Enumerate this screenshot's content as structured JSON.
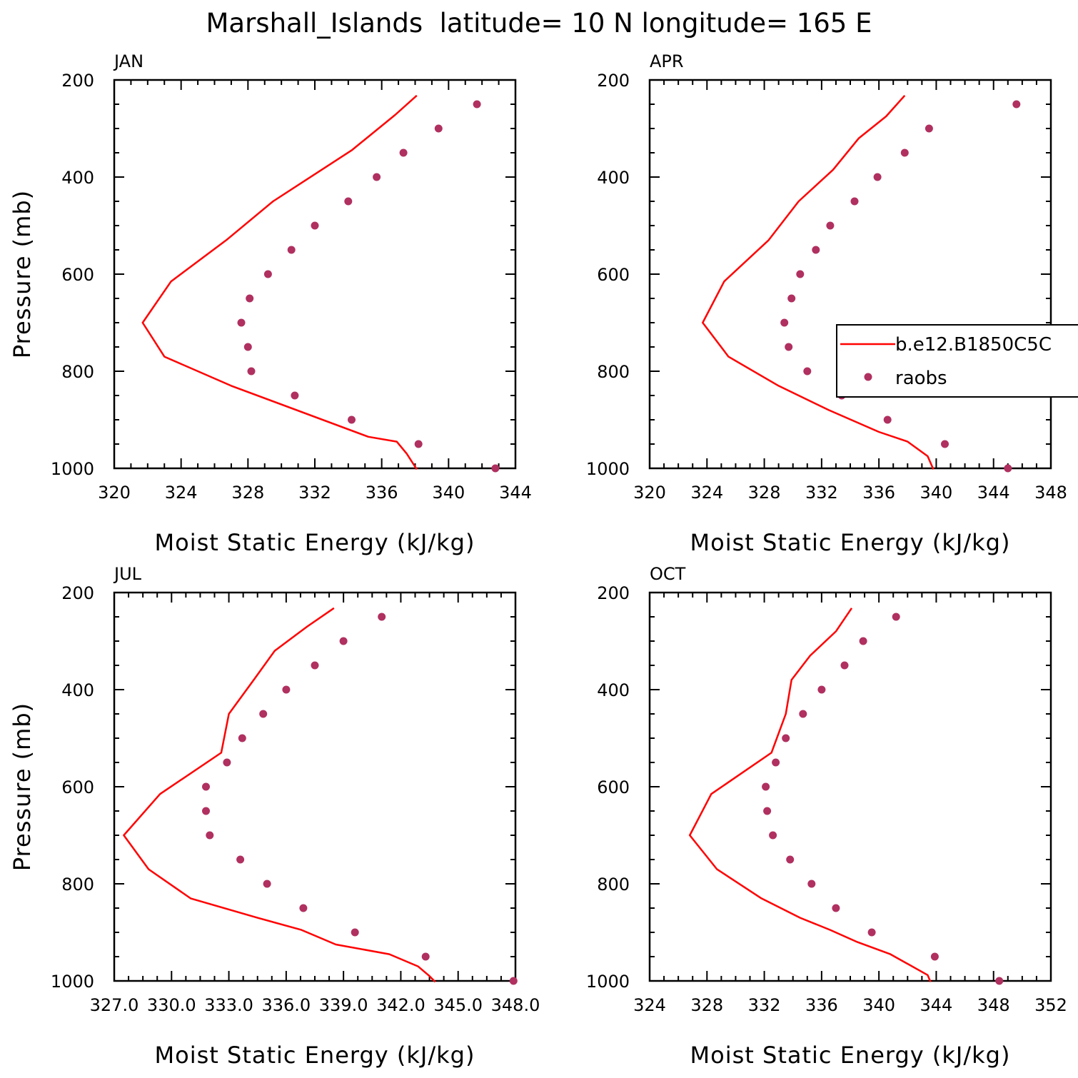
{
  "figure": {
    "title": "Marshall_Islands  latitude= 10 N longitude= 165 E"
  },
  "legend": {
    "model_label": "b.e12.B1850C5C",
    "obs_label": "raobs"
  },
  "colors": {
    "model": "#ff0000",
    "obs": "#b03060",
    "axis": "#000000"
  },
  "chart_data": [
    {
      "type": "line",
      "panel": "JAN",
      "xlabel": "Moist Static Energy (kJ/kg)",
      "ylabel": "Pressure (mb)",
      "xlim": [
        320,
        344
      ],
      "ylim": [
        1000,
        200
      ],
      "xticks": [
        320,
        324,
        328,
        332,
        336,
        340,
        344
      ],
      "xtick_labels": [
        "320",
        "324",
        "328",
        "332",
        "336",
        "340",
        "344"
      ],
      "yticks": [
        200,
        400,
        600,
        800,
        1000
      ],
      "series": [
        {
          "name": "b.e12.B1850C5C",
          "kind": "line",
          "x": [
            338.1,
            336.8,
            334.2,
            329.5,
            326.7,
            323.4,
            321.7,
            323.0,
            327.0,
            335.2,
            336.9,
            337.5,
            338.1
          ],
          "y": [
            232,
            272,
            345,
            450,
            530,
            615,
            700,
            770,
            830,
            935,
            945,
            970,
            1002
          ]
        },
        {
          "name": "raobs",
          "kind": "scatter",
          "x": [
            341.7,
            339.4,
            337.3,
            335.7,
            334.0,
            332.0,
            330.6,
            329.2,
            328.1,
            327.6,
            328.0,
            328.2,
            330.8,
            334.2,
            338.2,
            342.8
          ],
          "y": [
            250,
            300,
            350,
            400,
            450,
            500,
            550,
            600,
            650,
            700,
            750,
            800,
            850,
            900,
            950,
            1000
          ]
        }
      ]
    },
    {
      "type": "line",
      "panel": "APR",
      "xlabel": "Moist Static Energy (kJ/kg)",
      "ylabel": "",
      "xlim": [
        320,
        348
      ],
      "ylim": [
        1000,
        200
      ],
      "xticks": [
        320,
        324,
        328,
        332,
        336,
        340,
        344,
        348
      ],
      "xtick_labels": [
        "320",
        "324",
        "328",
        "332",
        "336",
        "340",
        "344",
        "348"
      ],
      "yticks": [
        200,
        400,
        600,
        800,
        1000
      ],
      "series": [
        {
          "name": "b.e12.B1850C5C",
          "kind": "line",
          "x": [
            337.8,
            336.5,
            334.6,
            332.8,
            330.4,
            328.3,
            325.2,
            323.7,
            325.5,
            329.0,
            332.5,
            336.0,
            338.0,
            339.4,
            339.8
          ],
          "y": [
            232,
            275,
            320,
            385,
            450,
            530,
            615,
            700,
            770,
            830,
            880,
            925,
            945,
            975,
            1002
          ]
        },
        {
          "name": "raobs",
          "kind": "scatter",
          "x": [
            345.6,
            339.5,
            337.8,
            335.9,
            334.3,
            332.6,
            331.6,
            330.5,
            329.9,
            329.4,
            329.7,
            331.0,
            333.4,
            336.6,
            340.6,
            345.0
          ],
          "y": [
            250,
            300,
            350,
            400,
            450,
            500,
            550,
            600,
            650,
            700,
            750,
            800,
            850,
            900,
            950,
            1000
          ]
        }
      ]
    },
    {
      "type": "line",
      "panel": "JUL",
      "xlabel": "Moist Static Energy (kJ/kg)",
      "ylabel": "Pressure (mb)",
      "xlim": [
        327.0,
        348.0
      ],
      "ylim": [
        1000,
        200
      ],
      "xticks": [
        327.0,
        330.0,
        333.0,
        336.0,
        339.0,
        342.0,
        345.0,
        348.0
      ],
      "xtick_labels": [
        "327.0",
        "330.0",
        "333.0",
        "336.0",
        "339.0",
        "342.0",
        "345.0",
        "348.0"
      ],
      "yticks": [
        200,
        400,
        600,
        800,
        1000
      ],
      "series": [
        {
          "name": "b.e12.B1850C5C",
          "kind": "line",
          "x": [
            338.5,
            337.1,
            335.4,
            334.3,
            333.0,
            332.6,
            329.4,
            327.5,
            328.8,
            331.0,
            334.5,
            336.8,
            338.6,
            341.4,
            342.9,
            343.5,
            343.8
          ],
          "y": [
            232,
            270,
            320,
            380,
            450,
            530,
            615,
            700,
            770,
            830,
            870,
            895,
            925,
            945,
            970,
            990,
            1002
          ]
        },
        {
          "name": "raobs",
          "kind": "scatter",
          "x": [
            341.0,
            339.0,
            337.5,
            336.0,
            334.8,
            333.7,
            332.9,
            331.8,
            331.8,
            332.0,
            333.6,
            335.0,
            336.9,
            339.6,
            343.3,
            347.9
          ],
          "y": [
            250,
            300,
            350,
            400,
            450,
            500,
            550,
            600,
            650,
            700,
            750,
            800,
            850,
            900,
            950,
            1000
          ]
        }
      ]
    },
    {
      "type": "line",
      "panel": "OCT",
      "xlabel": "Moist Static Energy (kJ/kg)",
      "ylabel": "",
      "xlim": [
        324,
        352
      ],
      "ylim": [
        1000,
        200
      ],
      "xticks": [
        324,
        328,
        332,
        336,
        340,
        344,
        348,
        352
      ],
      "xtick_labels": [
        "324",
        "328",
        "332",
        "336",
        "340",
        "344",
        "348",
        "352"
      ],
      "yticks": [
        200,
        400,
        600,
        800,
        1000
      ],
      "series": [
        {
          "name": "b.e12.B1850C5C",
          "kind": "line",
          "x": [
            338.1,
            337.0,
            335.2,
            333.9,
            333.5,
            332.5,
            328.3,
            326.8,
            328.7,
            331.8,
            334.5,
            336.6,
            338.5,
            340.8,
            343.4,
            343.6
          ],
          "y": [
            232,
            280,
            330,
            380,
            450,
            530,
            615,
            700,
            770,
            830,
            870,
            895,
            920,
            945,
            988,
            1002
          ]
        },
        {
          "name": "raobs",
          "kind": "scatter",
          "x": [
            341.2,
            338.9,
            337.6,
            336.0,
            334.7,
            333.5,
            332.8,
            332.1,
            332.2,
            332.6,
            333.8,
            335.3,
            337.0,
            339.5,
            343.9,
            348.4
          ],
          "y": [
            250,
            300,
            350,
            400,
            450,
            500,
            550,
            600,
            650,
            700,
            750,
            800,
            850,
            900,
            950,
            1000
          ]
        }
      ]
    }
  ]
}
